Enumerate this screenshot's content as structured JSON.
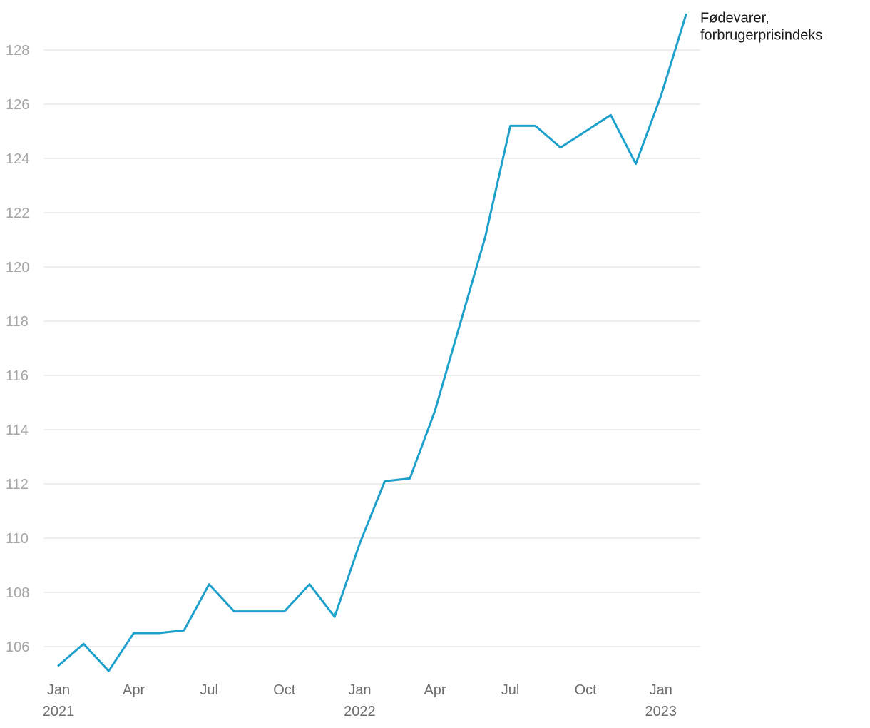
{
  "colors": {
    "series": "#1ea0cc",
    "grid": "#e2e2e2",
    "ytick": "#a6a6a6",
    "xtick": "#6e6e6e"
  },
  "chart_data": {
    "type": "line",
    "title": "",
    "xlabel": "",
    "ylabel": "",
    "ylim": [
      105,
      129.5
    ],
    "grid": true,
    "legend": "end-of-line label",
    "y_ticks": [
      106,
      108,
      110,
      112,
      114,
      116,
      118,
      120,
      122,
      124,
      126,
      128
    ],
    "x_ticks": [
      {
        "label": "Jan",
        "year": "2021",
        "index": 0
      },
      {
        "label": "Apr",
        "year": "",
        "index": 3
      },
      {
        "label": "Jul",
        "year": "",
        "index": 6
      },
      {
        "label": "Oct",
        "year": "",
        "index": 9
      },
      {
        "label": "Jan",
        "year": "2022",
        "index": 12
      },
      {
        "label": "Apr",
        "year": "",
        "index": 15
      },
      {
        "label": "Jul",
        "year": "",
        "index": 18
      },
      {
        "label": "Oct",
        "year": "",
        "index": 21
      },
      {
        "label": "Jan",
        "year": "2023",
        "index": 24
      }
    ],
    "x": [
      "2021-01",
      "2021-02",
      "2021-03",
      "2021-04",
      "2021-05",
      "2021-06",
      "2021-07",
      "2021-08",
      "2021-09",
      "2021-10",
      "2021-11",
      "2021-12",
      "2022-01",
      "2022-02",
      "2022-03",
      "2022-04",
      "2022-05",
      "2022-06",
      "2022-07",
      "2022-08",
      "2022-09",
      "2022-10",
      "2022-11",
      "2022-12",
      "2023-01",
      "2023-02"
    ],
    "series": [
      {
        "name": "Fødevarer, forbrugerprisindeks",
        "label_lines": [
          "Fødevarer,",
          "forbrugerprisindeks"
        ],
        "values": [
          105.3,
          106.1,
          105.1,
          106.5,
          106.5,
          106.6,
          108.3,
          107.3,
          107.3,
          107.3,
          108.3,
          107.1,
          109.8,
          112.1,
          112.2,
          114.7,
          117.9,
          121.1,
          125.2,
          125.2,
          124.4,
          125.0,
          125.6,
          123.8,
          126.3,
          129.3
        ]
      }
    ]
  }
}
